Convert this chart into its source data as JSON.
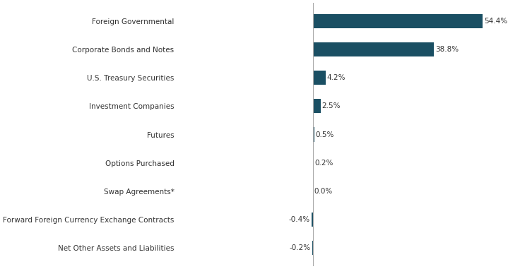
{
  "categories": [
    "Net Other Assets and Liabilities",
    "Forward Foreign Currency Exchange Contracts",
    "Swap Agreements*",
    "Options Purchased",
    "Futures",
    "Investment Companies",
    "U.S. Treasury Securities",
    "Corporate Bonds and Notes",
    "Foreign Governmental"
  ],
  "values": [
    -0.2,
    -0.4,
    0.0,
    0.2,
    0.5,
    2.5,
    4.2,
    38.8,
    54.4
  ],
  "bar_color": "#1a4f63",
  "background_color": "#ffffff",
  "label_color": "#333333",
  "value_color": "#333333",
  "bar_height": 0.5,
  "figsize": [
    7.19,
    3.81
  ],
  "dpi": 100,
  "font_size": 7.5,
  "axis_line_color": "#aaaaaa"
}
